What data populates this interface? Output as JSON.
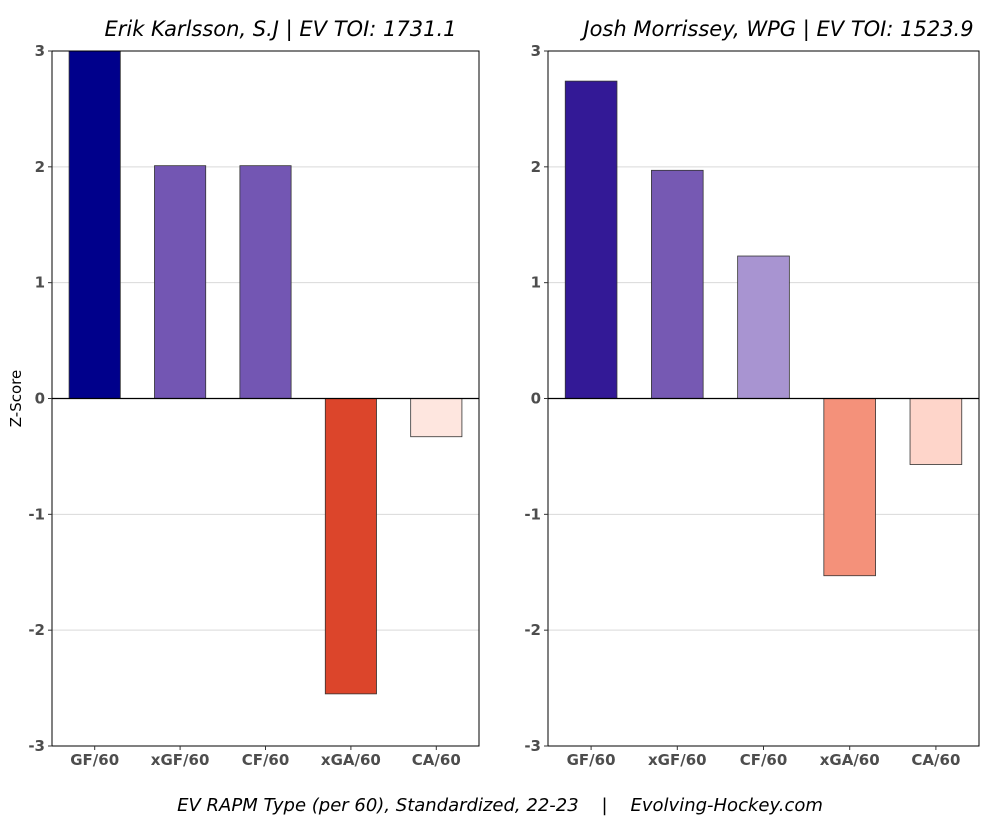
{
  "caption": "EV RAPM Type (per 60), Standardized, 22-23    |    Evolving-Hockey.com",
  "chart_data": [
    {
      "type": "bar",
      "title": "Erik Karlsson, S.J  |  EV TOI: 1731.1",
      "ylabel": "Z-Score",
      "categories": [
        "GF/60",
        "xGF/60",
        "CF/60",
        "xGA/60",
        "CA/60"
      ],
      "values": [
        3.0,
        2.01,
        2.01,
        -2.55,
        -0.33
      ],
      "colors": [
        "#00008b",
        "#7356b3",
        "#7356b3",
        "#dc452b",
        "#fee6df"
      ],
      "ylim": [
        -3,
        3
      ],
      "yticks": [
        "-3",
        "-2",
        "-1",
        "0",
        "1",
        "2",
        "3"
      ],
      "grid": true
    },
    {
      "type": "bar",
      "title": "Josh Morrissey, WPG  |  EV TOI: 1523.9",
      "ylabel": "",
      "categories": [
        "GF/60",
        "xGF/60",
        "CF/60",
        "xGA/60",
        "CA/60"
      ],
      "values": [
        2.74,
        1.97,
        1.23,
        -1.53,
        -0.57
      ],
      "colors": [
        "#331996",
        "#7659b3",
        "#a894d1",
        "#f4917a",
        "#fed5ca"
      ],
      "ylim": [
        -3,
        3
      ],
      "yticks": [
        "-3",
        "-2",
        "-1",
        "0",
        "1",
        "2",
        "3"
      ],
      "grid": true
    }
  ]
}
